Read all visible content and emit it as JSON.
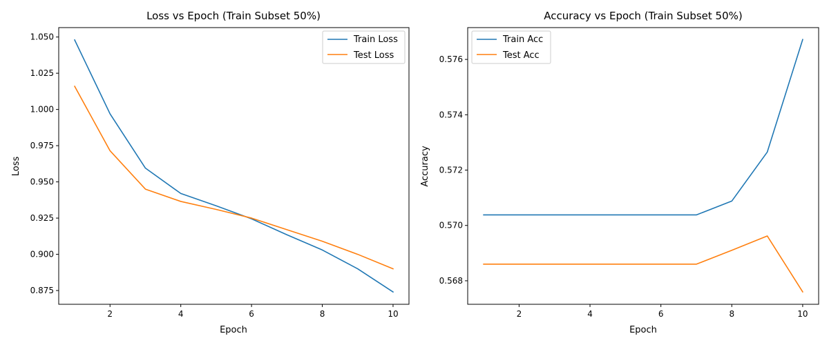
{
  "chart_data": [
    {
      "type": "line",
      "title": "Loss vs Epoch (Train Subset 50%)",
      "xlabel": "Epoch",
      "ylabel": "Loss",
      "xlim": [
        0.55,
        10.45
      ],
      "ylim": [
        0.8655,
        1.0565
      ],
      "xticks": [
        2,
        4,
        6,
        8,
        10
      ],
      "yticks": [
        0.875,
        0.9,
        0.925,
        0.95,
        0.975,
        1.0,
        1.025,
        1.05
      ],
      "ytick_labels": [
        "0.875",
        "0.900",
        "0.925",
        "0.950",
        "0.975",
        "1.000",
        "1.025",
        "1.050"
      ],
      "x": [
        1,
        2,
        3,
        4,
        5,
        6,
        7,
        8,
        9,
        10
      ],
      "legend": "top-right",
      "grid": false,
      "series": [
        {
          "name": "Train Loss",
          "color": "#1f77b4",
          "values": [
            1.048,
            0.997,
            0.9595,
            0.942,
            0.9335,
            0.9245,
            0.9135,
            0.903,
            0.89,
            0.874
          ]
        },
        {
          "name": "Test Loss",
          "color": "#ff7f0e",
          "values": [
            1.016,
            0.9715,
            0.945,
            0.9365,
            0.931,
            0.925,
            0.917,
            0.909,
            0.9,
            0.89
          ]
        }
      ]
    },
    {
      "type": "line",
      "title": "Accuracy vs Epoch (Train Subset 50%)",
      "xlabel": "Epoch",
      "ylabel": "Accuracy",
      "xlim": [
        0.55,
        10.45
      ],
      "ylim": [
        0.56715,
        0.57715
      ],
      "xticks": [
        2,
        4,
        6,
        8,
        10
      ],
      "yticks": [
        0.568,
        0.57,
        0.572,
        0.574,
        0.576
      ],
      "ytick_labels": [
        "0.568",
        "0.570",
        "0.572",
        "0.574",
        "0.576"
      ],
      "x": [
        1,
        2,
        3,
        4,
        5,
        6,
        7,
        8,
        9,
        10
      ],
      "legend": "top-left",
      "grid": false,
      "series": [
        {
          "name": "Train Acc",
          "color": "#1f77b4",
          "values": [
            0.57038,
            0.57038,
            0.57038,
            0.57038,
            0.57038,
            0.57038,
            0.57038,
            0.57088,
            0.57265,
            0.57672
          ]
        },
        {
          "name": "Test Acc",
          "color": "#ff7f0e",
          "values": [
            0.5686,
            0.5686,
            0.5686,
            0.5686,
            0.5686,
            0.5686,
            0.5686,
            0.5691,
            0.56962,
            0.5676
          ]
        }
      ]
    }
  ]
}
